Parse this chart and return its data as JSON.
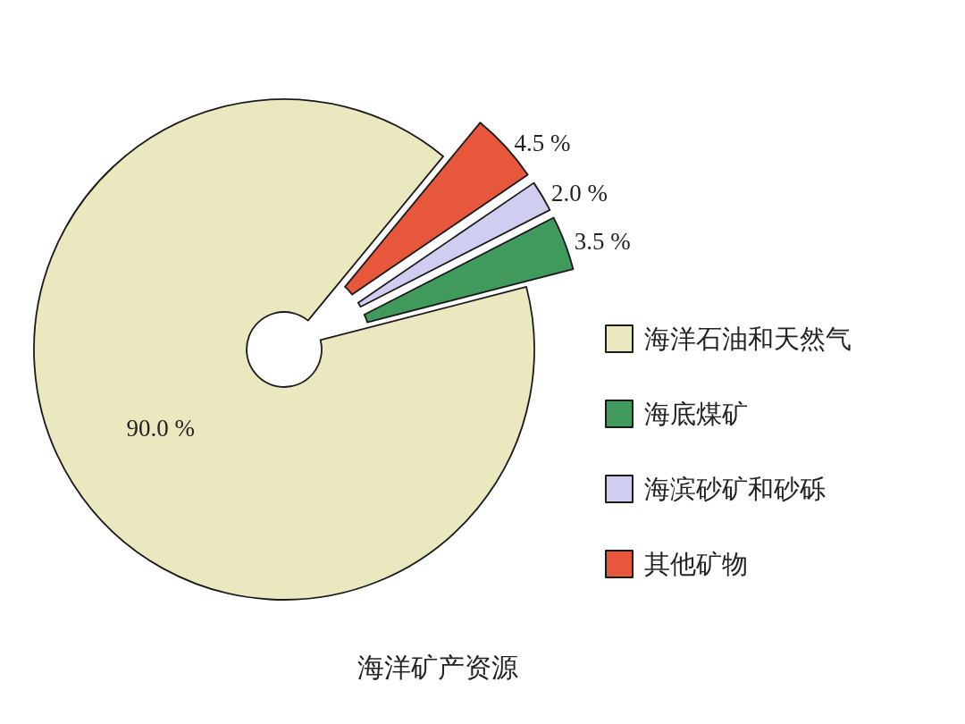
{
  "chart_data": {
    "type": "donut",
    "title": "海洋矿产资源",
    "categories": [
      "海洋石油和天然气",
      "海底煤矿",
      "海滨砂矿和砂砾",
      "其他矿物"
    ],
    "values": [
      90,
      3.5,
      2,
      4.5
    ],
    "colors": [
      "#e9e8bf",
      "#3f9a5c",
      "#cfcdf0",
      "#e6573c"
    ],
    "value_labels": [
      "90.0 %",
      "3.5 %",
      "2.0 %",
      "4.5 %"
    ],
    "legend": "right"
  }
}
